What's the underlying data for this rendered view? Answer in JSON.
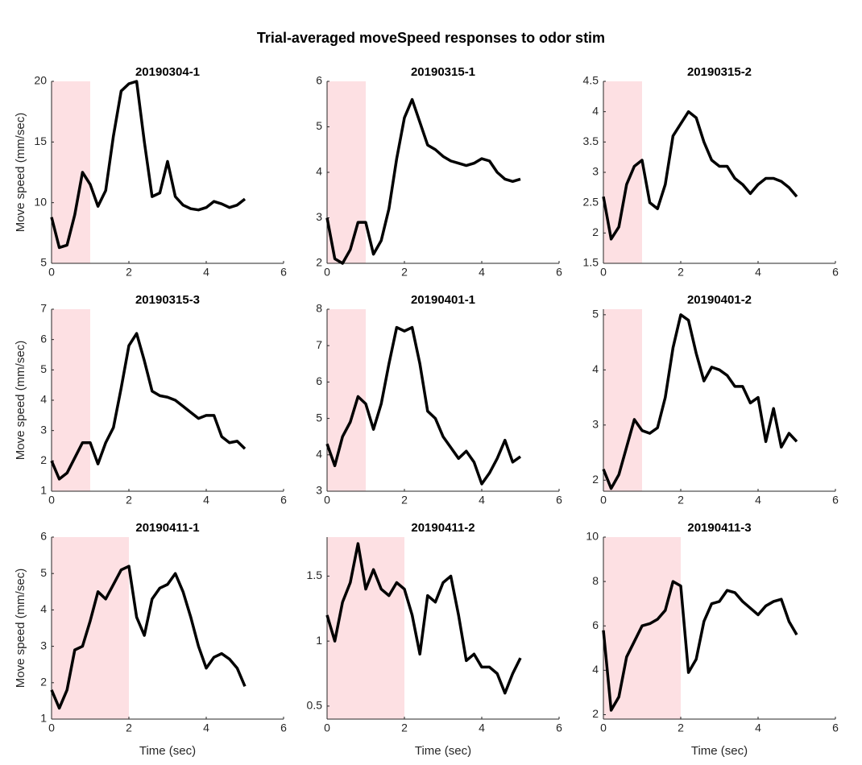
{
  "title": "Trial-averaged moveSpeed responses to odor stim",
  "chart_data": [
    {
      "type": "line",
      "title": "20190304-1",
      "ylabel": "Move speed (mm/sec)",
      "stim": [
        0,
        1
      ],
      "stim_color": "#fde0e3",
      "color": "#000000",
      "x": [
        0,
        0.2,
        0.4,
        0.6,
        0.8,
        1,
        1.2,
        1.4,
        1.6,
        1.8,
        2,
        2.2,
        2.4,
        2.6,
        2.8,
        3,
        3.2,
        3.4,
        3.6,
        3.8,
        4,
        4.2,
        4.4,
        4.6,
        4.8,
        5
      ],
      "values": [
        8.8,
        6.3,
        6.5,
        9,
        12.5,
        11.5,
        9.7,
        11,
        15.5,
        19.2,
        19.8,
        20,
        15,
        10.5,
        10.8,
        13.4,
        10.5,
        9.8,
        9.5,
        9.4,
        9.6,
        10.1,
        9.9,
        9.6,
        9.8,
        10.3
      ],
      "xlim": [
        0,
        6
      ],
      "xticks": [
        0,
        2,
        4,
        6
      ],
      "ylim": [
        5,
        20
      ],
      "yticks": [
        5,
        10,
        15,
        20
      ]
    },
    {
      "type": "line",
      "title": "20190315-1",
      "stim": [
        0,
        1
      ],
      "stim_color": "#fde0e3",
      "color": "#000000",
      "x": [
        0,
        0.2,
        0.4,
        0.6,
        0.8,
        1,
        1.2,
        1.4,
        1.6,
        1.8,
        2,
        2.2,
        2.4,
        2.6,
        2.8,
        3,
        3.2,
        3.4,
        3.6,
        3.8,
        4,
        4.2,
        4.4,
        4.6,
        4.8,
        5
      ],
      "values": [
        3.0,
        2.1,
        2.0,
        2.3,
        2.9,
        2.9,
        2.2,
        2.5,
        3.2,
        4.3,
        5.2,
        5.6,
        5.1,
        4.6,
        4.5,
        4.35,
        4.25,
        4.2,
        4.15,
        4.2,
        4.3,
        4.25,
        4.0,
        3.85,
        3.8,
        3.85
      ],
      "xlim": [
        0,
        6
      ],
      "xticks": [
        0,
        2,
        4,
        6
      ],
      "ylim": [
        2,
        6
      ],
      "yticks": [
        2,
        3,
        4,
        5,
        6
      ]
    },
    {
      "type": "line",
      "title": "20190315-2",
      "stim": [
        0,
        1
      ],
      "stim_color": "#fde0e3",
      "color": "#000000",
      "x": [
        0,
        0.2,
        0.4,
        0.6,
        0.8,
        1,
        1.2,
        1.4,
        1.6,
        1.8,
        2,
        2.2,
        2.4,
        2.6,
        2.8,
        3,
        3.2,
        3.4,
        3.6,
        3.8,
        4,
        4.2,
        4.4,
        4.6,
        4.8,
        5
      ],
      "values": [
        2.6,
        1.9,
        2.1,
        2.8,
        3.1,
        3.2,
        2.5,
        2.4,
        2.8,
        3.6,
        3.8,
        4.0,
        3.9,
        3.5,
        3.2,
        3.1,
        3.1,
        2.9,
        2.8,
        2.65,
        2.8,
        2.9,
        2.9,
        2.85,
        2.75,
        2.6
      ],
      "xlim": [
        0,
        6
      ],
      "xticks": [
        0,
        2,
        4,
        6
      ],
      "ylim": [
        1.5,
        4.5
      ],
      "yticks": [
        1.5,
        2,
        2.5,
        3,
        3.5,
        4,
        4.5
      ]
    },
    {
      "type": "line",
      "title": "20190315-3",
      "ylabel": "Move speed (mm/sec)",
      "stim": [
        0,
        1
      ],
      "stim_color": "#fde0e3",
      "color": "#000000",
      "x": [
        0,
        0.2,
        0.4,
        0.6,
        0.8,
        1,
        1.2,
        1.4,
        1.6,
        1.8,
        2,
        2.2,
        2.4,
        2.6,
        2.8,
        3,
        3.2,
        3.4,
        3.6,
        3.8,
        4,
        4.2,
        4.4,
        4.6,
        4.8,
        5
      ],
      "values": [
        2.0,
        1.4,
        1.6,
        2.1,
        2.6,
        2.6,
        1.9,
        2.6,
        3.1,
        4.4,
        5.8,
        6.2,
        5.3,
        4.3,
        4.15,
        4.1,
        4.0,
        3.8,
        3.6,
        3.4,
        3.5,
        3.5,
        2.8,
        2.6,
        2.65,
        2.4
      ],
      "xlim": [
        0,
        6
      ],
      "xticks": [
        0,
        2,
        4,
        6
      ],
      "ylim": [
        1,
        7
      ],
      "yticks": [
        1,
        2,
        3,
        4,
        5,
        6,
        7
      ]
    },
    {
      "type": "line",
      "title": "20190401-1",
      "stim": [
        0,
        1
      ],
      "stim_color": "#fde0e3",
      "color": "#000000",
      "x": [
        0,
        0.2,
        0.4,
        0.6,
        0.8,
        1,
        1.2,
        1.4,
        1.6,
        1.8,
        2,
        2.2,
        2.4,
        2.6,
        2.8,
        3,
        3.2,
        3.4,
        3.6,
        3.8,
        4,
        4.2,
        4.4,
        4.6,
        4.8,
        5
      ],
      "values": [
        4.3,
        3.7,
        4.5,
        4.9,
        5.6,
        5.4,
        4.7,
        5.4,
        6.5,
        7.5,
        7.4,
        7.5,
        6.5,
        5.2,
        5.0,
        4.5,
        4.2,
        3.9,
        4.1,
        3.8,
        3.2,
        3.5,
        3.9,
        4.4,
        3.8,
        3.95
      ],
      "xlim": [
        0,
        6
      ],
      "xticks": [
        0,
        2,
        4,
        6
      ],
      "ylim": [
        3,
        8
      ],
      "yticks": [
        3,
        4,
        5,
        6,
        7,
        8
      ]
    },
    {
      "type": "line",
      "title": "20190401-2",
      "stim": [
        0,
        1
      ],
      "stim_color": "#fde0e3",
      "color": "#000000",
      "x": [
        0,
        0.2,
        0.4,
        0.6,
        0.8,
        1,
        1.2,
        1.4,
        1.6,
        1.8,
        2,
        2.2,
        2.4,
        2.6,
        2.8,
        3,
        3.2,
        3.4,
        3.6,
        3.8,
        4,
        4.2,
        4.4,
        4.6,
        4.8,
        5
      ],
      "values": [
        2.2,
        1.85,
        2.1,
        2.6,
        3.1,
        2.9,
        2.85,
        2.95,
        3.5,
        4.4,
        5.0,
        4.9,
        4.3,
        3.8,
        4.05,
        4.0,
        3.9,
        3.7,
        3.7,
        3.4,
        3.5,
        2.7,
        3.3,
        2.6,
        2.85,
        2.7
      ],
      "xlim": [
        0,
        6
      ],
      "xticks": [
        0,
        2,
        4,
        6
      ],
      "ylim": [
        1.8,
        5.1
      ],
      "yticks": [
        2,
        3,
        4,
        5
      ]
    },
    {
      "type": "line",
      "title": "20190411-1",
      "ylabel": "Move speed (mm/sec)",
      "xlabel": "Time (sec)",
      "stim": [
        0,
        2
      ],
      "stim_color": "#fde0e3",
      "color": "#000000",
      "x": [
        0,
        0.2,
        0.4,
        0.6,
        0.8,
        1,
        1.2,
        1.4,
        1.6,
        1.8,
        2,
        2.2,
        2.4,
        2.6,
        2.8,
        3,
        3.2,
        3.4,
        3.6,
        3.8,
        4,
        4.2,
        4.4,
        4.6,
        4.8,
        5
      ],
      "values": [
        1.8,
        1.3,
        1.8,
        2.9,
        3.0,
        3.7,
        4.5,
        4.3,
        4.7,
        5.1,
        5.2,
        3.8,
        3.3,
        4.3,
        4.6,
        4.7,
        5.0,
        4.5,
        3.8,
        3.0,
        2.4,
        2.7,
        2.8,
        2.65,
        2.4,
        1.9
      ],
      "xlim": [
        0,
        6
      ],
      "xticks": [
        0,
        2,
        4,
        6
      ],
      "ylim": [
        1,
        6
      ],
      "yticks": [
        1,
        2,
        3,
        4,
        5,
        6
      ]
    },
    {
      "type": "line",
      "title": "20190411-2",
      "xlabel": "Time (sec)",
      "stim": [
        0,
        2
      ],
      "stim_color": "#fde0e3",
      "color": "#000000",
      "x": [
        0,
        0.2,
        0.4,
        0.6,
        0.8,
        1,
        1.2,
        1.4,
        1.6,
        1.8,
        2,
        2.2,
        2.4,
        2.6,
        2.8,
        3,
        3.2,
        3.4,
        3.6,
        3.8,
        4,
        4.2,
        4.4,
        4.6,
        4.8,
        5
      ],
      "values": [
        1.2,
        1.0,
        1.3,
        1.45,
        1.75,
        1.4,
        1.55,
        1.4,
        1.35,
        1.45,
        1.4,
        1.2,
        0.9,
        1.35,
        1.3,
        1.45,
        1.5,
        1.2,
        0.85,
        0.9,
        0.8,
        0.8,
        0.75,
        0.6,
        0.75,
        0.87
      ],
      "xlim": [
        0,
        6
      ],
      "xticks": [
        0,
        2,
        4,
        6
      ],
      "ylim": [
        0.4,
        1.8
      ],
      "yticks": [
        0.5,
        1,
        1.5
      ]
    },
    {
      "type": "line",
      "title": "20190411-3",
      "xlabel": "Time (sec)",
      "stim": [
        0,
        2
      ],
      "stim_color": "#fde0e3",
      "color": "#000000",
      "x": [
        0,
        0.2,
        0.4,
        0.6,
        0.8,
        1,
        1.2,
        1.4,
        1.6,
        1.8,
        2,
        2.2,
        2.4,
        2.6,
        2.8,
        3,
        3.2,
        3.4,
        3.6,
        3.8,
        4,
        4.2,
        4.4,
        4.6,
        4.8,
        5
      ],
      "values": [
        5.8,
        2.2,
        2.8,
        4.6,
        5.3,
        6.0,
        6.1,
        6.3,
        6.7,
        8.0,
        7.8,
        3.9,
        4.5,
        6.2,
        7.0,
        7.1,
        7.6,
        7.5,
        7.1,
        6.8,
        6.5,
        6.9,
        7.1,
        7.2,
        6.2,
        5.6
      ],
      "xlim": [
        0,
        6
      ],
      "xticks": [
        0,
        2,
        4,
        6
      ],
      "ylim": [
        1.8,
        10
      ],
      "yticks": [
        2,
        4,
        6,
        8,
        10
      ]
    }
  ]
}
